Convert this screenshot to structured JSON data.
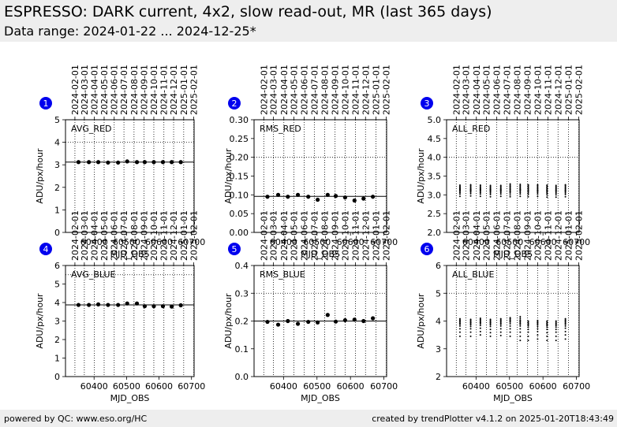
{
  "header": {
    "title": "ESPRESSO: DARK current, 4x2, slow read-out, MR (last 365 days)",
    "subtitle": "Data range: 2024-01-22 ... 2024-12-25*"
  },
  "footer": {
    "left": "powered by QC: www.eso.org/HC",
    "right": "created by trendPlotter v4.1.2 on 2025-01-20T18:43:49"
  },
  "colors": {
    "marker_badge": "#0000ee",
    "points": "#000000",
    "reference_line": "#000000"
  },
  "top_axis_dates": [
    "2024-02-01",
    "2024-03-01",
    "2024-04-01",
    "2024-05-01",
    "2024-06-01",
    "2024-07-01",
    "2024-08-01",
    "2024-09-01",
    "2024-10-01",
    "2024-11-01",
    "2024-12-01",
    "2025-01-01",
    "2025-02-01"
  ],
  "top_axis_mjd": [
    60341,
    60370,
    60401,
    60431,
    60462,
    60492,
    60523,
    60554,
    60584,
    60615,
    60645,
    60676,
    60707
  ],
  "chart_data": [
    {
      "type": "scatter",
      "panel": "1",
      "label": "AVG_RED",
      "xlabel": "MJD_OBS",
      "ylabel": "ADU/px/hour",
      "xlim": [
        60312,
        60708
      ],
      "ylim": [
        0,
        5
      ],
      "yticks": [
        "0",
        "1",
        "2",
        "3",
        "4",
        "5"
      ],
      "xticks": [
        "60400",
        "60500",
        "60600",
        "60700"
      ],
      "dotted_hline": 4,
      "ref_line": 3.12,
      "x": [
        60352,
        60384,
        60413,
        60443,
        60474,
        60502,
        60532,
        60556,
        60584,
        60612,
        60639,
        60667
      ],
      "values": [
        3.12,
        3.12,
        3.12,
        3.1,
        3.1,
        3.15,
        3.12,
        3.12,
        3.12,
        3.12,
        3.12,
        3.12
      ]
    },
    {
      "type": "scatter",
      "panel": "2",
      "label": "RMS_RED",
      "xlabel": "MJD_OBS",
      "ylabel": "ADU/px/hour",
      "xlim": [
        60312,
        60708
      ],
      "ylim": [
        0,
        0.3
      ],
      "yticks": [
        "0.00",
        "0.05",
        "0.10",
        "0.15",
        "0.20",
        "0.25",
        "0.30"
      ],
      "xticks": [
        "60400",
        "60500",
        "60600",
        "60700"
      ],
      "dotted_hline": 0.2,
      "ref_line": 0.096,
      "x": [
        60352,
        60384,
        60413,
        60443,
        60474,
        60502,
        60532,
        60556,
        60584,
        60612,
        60639,
        60667
      ],
      "values": [
        0.095,
        0.1,
        0.095,
        0.1,
        0.095,
        0.087,
        0.1,
        0.097,
        0.093,
        0.085,
        0.09,
        0.095
      ]
    },
    {
      "type": "scatter",
      "panel": "3",
      "label": "ALL_RED",
      "xlabel": "MJD_OBS",
      "ylabel": "ADU/px/hour",
      "xlim": [
        60312,
        60708
      ],
      "ylim": [
        2,
        5
      ],
      "yticks": [
        "2.0",
        "2.5",
        "3.0",
        "3.5",
        "4.0",
        "4.5",
        "5.0"
      ],
      "xticks": [
        "60400",
        "60500",
        "60600",
        "60700"
      ],
      "dotted_hline": 4,
      "x": [
        60352,
        60384,
        60413,
        60443,
        60474,
        60502,
        60532,
        60556,
        60584,
        60612,
        60639,
        60667
      ],
      "clusters": [
        [
          2.96,
          3.02,
          3.06,
          3.09,
          3.12,
          3.14,
          3.16,
          3.18,
          3.2,
          3.23,
          3.26
        ],
        [
          2.97,
          3.03,
          3.07,
          3.1,
          3.12,
          3.14,
          3.16,
          3.19,
          3.22,
          3.25,
          3.27
        ],
        [
          2.96,
          3.02,
          3.06,
          3.09,
          3.12,
          3.14,
          3.16,
          3.18,
          3.21,
          3.24,
          3.26
        ],
        [
          2.95,
          3.01,
          3.05,
          3.08,
          3.11,
          3.13,
          3.15,
          3.17,
          3.2,
          3.22,
          3.25
        ],
        [
          2.96,
          3.02,
          3.06,
          3.09,
          3.11,
          3.13,
          3.15,
          3.17,
          3.2,
          3.23,
          3.25
        ],
        [
          2.95,
          3.0,
          3.05,
          3.08,
          3.11,
          3.14,
          3.17,
          3.2,
          3.23,
          3.26,
          3.29
        ],
        [
          2.96,
          3.02,
          3.06,
          3.09,
          3.12,
          3.14,
          3.16,
          3.19,
          3.22,
          3.25,
          3.28
        ],
        [
          2.95,
          3.01,
          3.05,
          3.08,
          3.11,
          3.13,
          3.16,
          3.19,
          3.22,
          3.25,
          3.27
        ],
        [
          2.96,
          3.02,
          3.06,
          3.09,
          3.11,
          3.13,
          3.16,
          3.19,
          3.22,
          3.25,
          3.27
        ],
        [
          2.94,
          3.0,
          3.04,
          3.07,
          3.1,
          3.12,
          3.15,
          3.18,
          3.21,
          3.24,
          3.26
        ],
        [
          2.94,
          3.0,
          3.04,
          3.07,
          3.1,
          3.12,
          3.15,
          3.17,
          3.2,
          3.22,
          3.25
        ],
        [
          2.95,
          3.01,
          3.05,
          3.08,
          3.11,
          3.13,
          3.16,
          3.19,
          3.22,
          3.25,
          3.27
        ]
      ]
    },
    {
      "type": "scatter",
      "panel": "4",
      "label": "AVG_BLUE",
      "xlabel": "MJD_OBS",
      "ylabel": "ADU/px/hour",
      "xlim": [
        60312,
        60708
      ],
      "ylim": [
        0,
        6
      ],
      "yticks": [
        "0",
        "1",
        "2",
        "3",
        "4",
        "5",
        "6"
      ],
      "xticks": [
        "60400",
        "60500",
        "60600",
        "60700"
      ],
      "dotted_hline": 5.5,
      "ref_line": 3.87,
      "x": [
        60352,
        60384,
        60413,
        60443,
        60474,
        60502,
        60532,
        60556,
        60584,
        60612,
        60639,
        60667
      ],
      "values": [
        3.87,
        3.87,
        3.9,
        3.87,
        3.87,
        3.95,
        3.95,
        3.8,
        3.8,
        3.8,
        3.78,
        3.85
      ]
    },
    {
      "type": "scatter",
      "panel": "5",
      "label": "RMS_BLUE",
      "xlabel": "MJD_OBS",
      "ylabel": "ADU/px/hour",
      "xlim": [
        60312,
        60708
      ],
      "ylim": [
        0,
        0.4
      ],
      "yticks": [
        "0.0",
        "0.1",
        "0.2",
        "0.3",
        "0.4"
      ],
      "xticks": [
        "60400",
        "60500",
        "60600",
        "60700"
      ],
      "dotted_hline": 0.3,
      "ref_line": 0.2,
      "x": [
        60352,
        60384,
        60413,
        60443,
        60474,
        60502,
        60532,
        60556,
        60584,
        60612,
        60639,
        60667
      ],
      "values": [
        0.197,
        0.187,
        0.2,
        0.19,
        0.197,
        0.195,
        0.222,
        0.198,
        0.203,
        0.205,
        0.2,
        0.21
      ]
    },
    {
      "type": "scatter",
      "panel": "6",
      "label": "ALL_BLUE",
      "xlabel": "MJD_OBS",
      "ylabel": "ADU/px/hour",
      "xlim": [
        60312,
        60708
      ],
      "ylim": [
        2,
        6
      ],
      "yticks": [
        "2",
        "3",
        "4",
        "5",
        "6"
      ],
      "xticks": [
        "60400",
        "60500",
        "60600",
        "60700"
      ],
      "dotted_hline": 5,
      "x": [
        60352,
        60384,
        60413,
        60443,
        60474,
        60502,
        60532,
        60556,
        60584,
        60612,
        60639,
        60667
      ],
      "clusters": [
        [
          3.45,
          3.6,
          3.72,
          3.82,
          3.88,
          3.92,
          3.96,
          4.0,
          4.04,
          4.08
        ],
        [
          3.45,
          3.6,
          3.72,
          3.8,
          3.86,
          3.9,
          3.94,
          3.98,
          4.02,
          4.06
        ],
        [
          3.5,
          3.62,
          3.74,
          3.84,
          3.9,
          3.94,
          3.98,
          4.02,
          4.06,
          4.1
        ],
        [
          3.45,
          3.58,
          3.7,
          3.8,
          3.86,
          3.9,
          3.94,
          3.98,
          4.02,
          4.06
        ],
        [
          3.48,
          3.6,
          3.72,
          3.82,
          3.88,
          3.92,
          3.96,
          4.0,
          4.04,
          4.08
        ],
        [
          3.45,
          3.6,
          3.72,
          3.82,
          3.9,
          3.96,
          4.0,
          4.04,
          4.08,
          4.12
        ],
        [
          3.3,
          3.45,
          3.6,
          3.72,
          3.82,
          3.88,
          3.92,
          3.96,
          4.0,
          4.04,
          4.1,
          4.16
        ],
        [
          3.3,
          3.45,
          3.6,
          3.7,
          3.78,
          3.84,
          3.88,
          3.92,
          3.96,
          4.0
        ],
        [
          3.35,
          3.5,
          3.62,
          3.72,
          3.8,
          3.86,
          3.9,
          3.94,
          3.98,
          4.02
        ],
        [
          3.3,
          3.45,
          3.58,
          3.7,
          3.78,
          3.84,
          3.88,
          3.92,
          3.96,
          4.0
        ],
        [
          3.3,
          3.45,
          3.6,
          3.7,
          3.78,
          3.84,
          3.88,
          3.92,
          3.96,
          4.0
        ],
        [
          3.35,
          3.5,
          3.62,
          3.74,
          3.82,
          3.88,
          3.92,
          3.96,
          4.0,
          4.04,
          4.08
        ]
      ]
    }
  ]
}
